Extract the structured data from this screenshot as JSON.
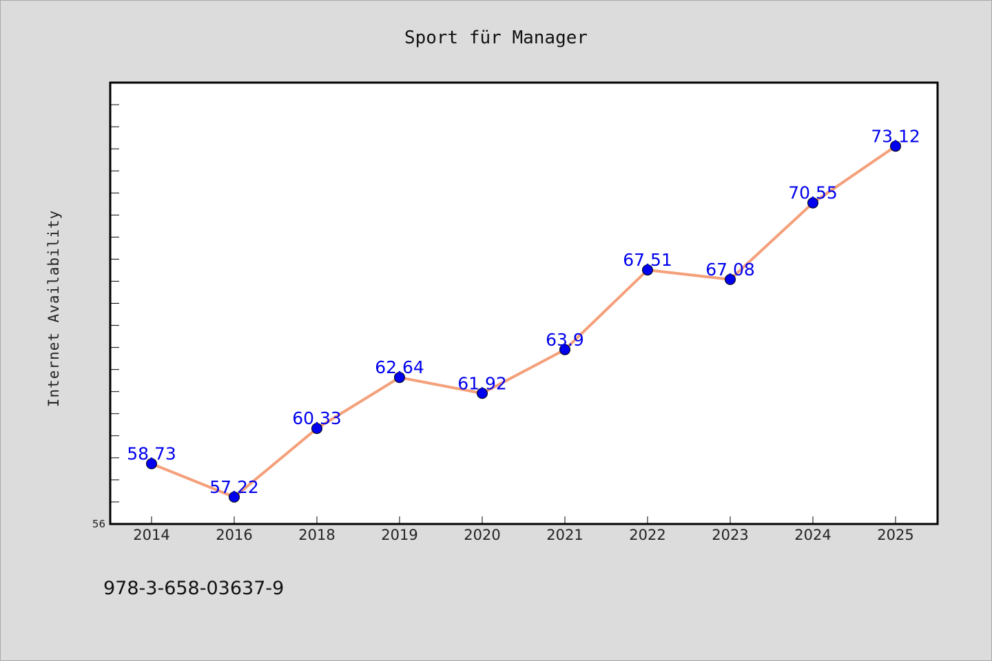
{
  "footer_text": "978-3-658-03637-9",
  "chart_data": {
    "type": "line",
    "title": "Sport für Manager",
    "ylabel": "Internet Availability",
    "xlabel": "",
    "categories": [
      "2014",
      "2016",
      "2018",
      "2019",
      "2020",
      "2021",
      "2022",
      "2023",
      "2024",
      "2025"
    ],
    "values": [
      58.73,
      57.22,
      60.33,
      62.64,
      61.92,
      63.9,
      67.51,
      67.08,
      70.55,
      73.12
    ],
    "value_labels": [
      "58.73",
      "57.22",
      "60.33",
      "62.64",
      "61.92",
      "63.9",
      "67.51",
      "67.08",
      "70.55",
      "73.12"
    ],
    "ylim": [
      56,
      76
    ],
    "ytick_labels": [
      "56"
    ],
    "grid": false,
    "line_color": "#f4a07a",
    "marker_color": "#0000ee",
    "label_color": "#0000ee"
  }
}
